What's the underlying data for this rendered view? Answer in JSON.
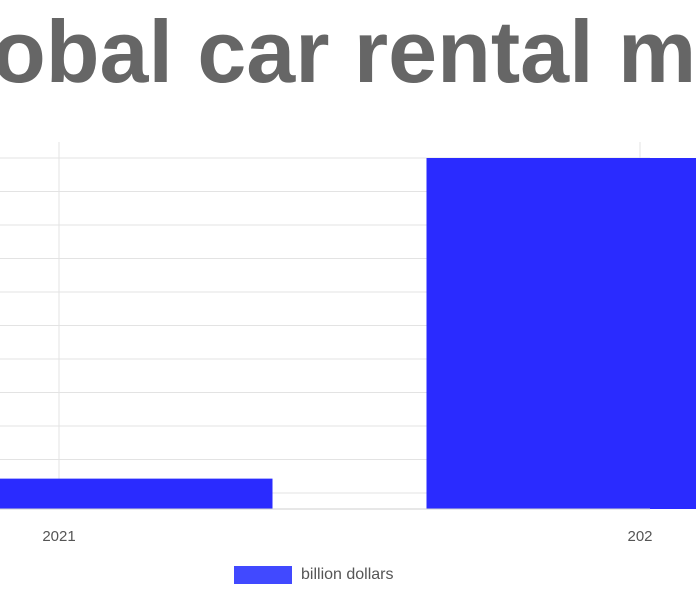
{
  "chart_data": {
    "type": "bar",
    "title": "obal car rental m",
    "categories": [
      "2021",
      "202"
    ],
    "series": [
      {
        "name": "billion dollars",
        "values": [
          9,
          104
        ]
      }
    ],
    "ylim": [
      0,
      104
    ],
    "grid": true,
    "legend_position": "bottom",
    "colors": {
      "bar": "#2a2bff",
      "legend_swatch": "#4149ff",
      "grid": "#e3e3e3",
      "axis": "#cfcfcf",
      "title": "#666666",
      "tick_label": "#555555"
    }
  }
}
